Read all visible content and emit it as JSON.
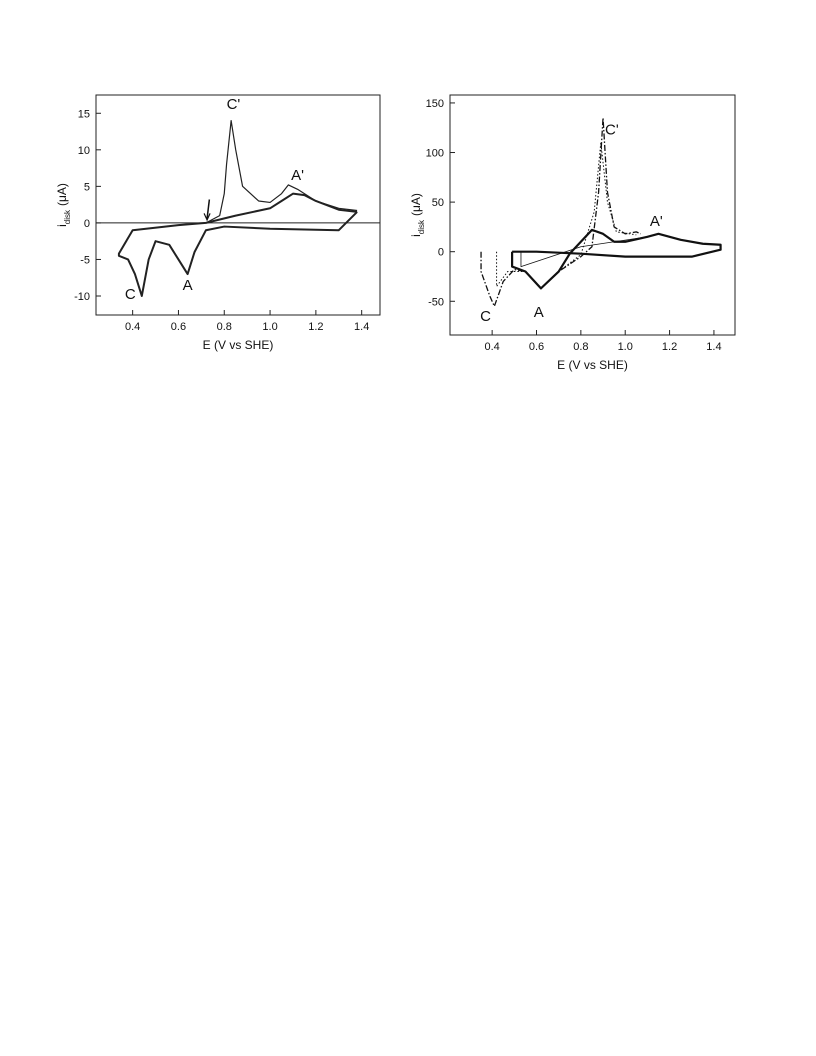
{
  "chart_data": [
    {
      "type": "line",
      "x_label": "E (V vs SHE)",
      "y_label": {
        "main": "i",
        "sub": "disk",
        "unit": "(μA)"
      },
      "xlim": [
        0.24,
        1.48
      ],
      "ylim": [
        -12.6,
        17.5
      ],
      "xticks": [
        0.4,
        0.6,
        0.8,
        {
          "value": 1,
          "label": "1.0"
        },
        1.2,
        1.4
      ],
      "yticks": [
        15,
        10,
        5,
        0,
        -5,
        -10
      ],
      "zero_line": 0,
      "annotations": [
        "C'",
        "A'",
        "C",
        "A"
      ],
      "series": [
        {
          "color": "#222",
          "width": 2,
          "dash": "none",
          "x": [
            1.38,
            1.3,
            1.0,
            0.8,
            0.72,
            0.67,
            0.64,
            0.6,
            0.56,
            0.5,
            0.47,
            0.44,
            0.41,
            0.38,
            0.34,
            0.34,
            0.4,
            0.6,
            0.72,
            0.85,
            1.0,
            1.05,
            1.1,
            1.15,
            1.2,
            1.3,
            1.38,
            1.38
          ],
          "values": [
            1.5,
            -1,
            -0.8,
            -0.5,
            -1,
            -4,
            -7,
            -5,
            -3,
            -2.5,
            -5,
            -10,
            -7,
            -5,
            -4.5,
            -4.2,
            -1,
            -0.3,
            0,
            1,
            2,
            3,
            4,
            3.8,
            3,
            1.8,
            1.5,
            1.5
          ]
        },
        {
          "color": "#222",
          "width": 1.2,
          "dash": "none",
          "x": [
            0.72,
            0.78,
            0.8,
            0.81,
            0.83,
            0.85,
            0.88,
            0.95,
            1.0,
            1.05,
            1.08,
            1.12,
            1.2,
            1.3,
            1.38
          ],
          "values": [
            0,
            1,
            4,
            8,
            14,
            10,
            5,
            3,
            2.8,
            4,
            5.2,
            4.6,
            3,
            2,
            1.7
          ]
        }
      ]
    },
    {
      "type": "line",
      "x_label": "E (V vs SHE)",
      "y_label": {
        "main": "i",
        "sub": "disk",
        "unit": "(μA)"
      },
      "xlim": [
        0.21,
        1.495
      ],
      "ylim": [
        -84,
        158
      ],
      "xticks": [
        0.4,
        0.6,
        0.8,
        {
          "value": 1,
          "label": "1.0"
        },
        1.2,
        1.4
      ],
      "yticks": [
        150,
        100,
        50,
        0,
        -50
      ],
      "annotations": [
        "C'",
        "A'",
        "C",
        "A"
      ],
      "series": [
        {
          "color": "#111",
          "width": 2.2,
          "dash": "none",
          "x": [
            0.49,
            0.49,
            0.55,
            0.62,
            0.7,
            0.75,
            0.8,
            0.85,
            0.9,
            0.95,
            1.0,
            1.1,
            1.15,
            1.25,
            1.35,
            1.43,
            1.43,
            1.3,
            1.0,
            0.8,
            0.6,
            0.49
          ],
          "values": [
            0,
            -15,
            -20,
            -37,
            -20,
            -2,
            10,
            22,
            18,
            10,
            10,
            15,
            18,
            12,
            8,
            7,
            2,
            -5,
            -5,
            -2,
            0,
            0
          ]
        },
        {
          "color": "#111",
          "width": 1.3,
          "dash": "6 2 1.5 2",
          "x": [
            0.35,
            0.35,
            0.39,
            0.41,
            0.45,
            0.5,
            0.55,
            0.62,
            0.7,
            0.8,
            0.85,
            0.88,
            0.9,
            0.92,
            0.95,
            1.0,
            1.05,
            1.07
          ],
          "values": [
            0,
            -20,
            -45,
            -55,
            -30,
            -18,
            -20,
            -37,
            -20,
            -5,
            5,
            60,
            135,
            60,
            25,
            18,
            20,
            18
          ]
        },
        {
          "color": "#111",
          "width": 1,
          "dash": "1.5 2",
          "x": [
            0.42,
            0.42,
            0.47,
            0.55,
            0.62,
            0.7,
            0.8,
            0.86,
            0.89,
            0.92,
            0.96,
            1.05
          ],
          "values": [
            0,
            -35,
            -20,
            -20,
            -37,
            -20,
            -3,
            40,
            110,
            50,
            20,
            17
          ]
        },
        {
          "color": "#111",
          "width": 0.8,
          "dash": "none",
          "x": [
            0.53,
            0.53,
            0.8,
            1.1
          ],
          "values": [
            0,
            -15,
            5,
            15
          ]
        }
      ]
    }
  ]
}
